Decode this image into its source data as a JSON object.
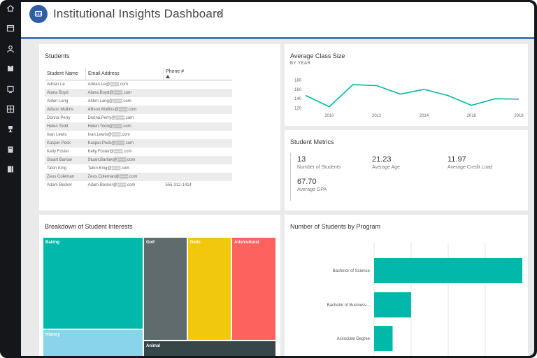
{
  "app": {
    "title": "Institutional Insights Dashboard",
    "badge_icon": "chart-icon",
    "dropdown_icon": "chevron-down-icon"
  },
  "sidebar": {
    "icons": [
      "home-icon",
      "calendar-icon",
      "person-icon",
      "puzzle-icon",
      "device-icon",
      "grid-icon",
      "trophy-icon",
      "book-icon",
      "bookmark-icon"
    ]
  },
  "colors": {
    "accent": "#4a78b5",
    "teal": "#01b8aa",
    "dark_gray": "#5f6b6d",
    "yellow": "#f2c80f",
    "coral": "#fd625e",
    "light_blue": "#8ad4eb",
    "charcoal": "#374649"
  },
  "students": {
    "title": "Students",
    "columns": [
      "Student Name",
      "Email Address",
      "Phone #"
    ],
    "rows": [
      {
        "name": "Adrian Le",
        "email": "Adrian.Le@▒▒▒.com",
        "phone": ""
      },
      {
        "name": "Alana Boyd",
        "email": "Alana.Boyd@▒▒▒.com",
        "phone": ""
      },
      {
        "name": "Alden Lang",
        "email": "Alden.Lang@▒▒▒.com",
        "phone": ""
      },
      {
        "name": "Allison Mullins",
        "email": "Allison.Mullins@▒▒▒.com",
        "phone": ""
      },
      {
        "name": "Donna Perry",
        "email": "Donna.Perry@▒▒▒.com",
        "phone": ""
      },
      {
        "name": "Helen Todd",
        "email": "Helen.Todd@▒▒▒.com",
        "phone": ""
      },
      {
        "name": "Ivan Lewis",
        "email": "Ivan.Lewis@▒▒▒.com",
        "phone": ""
      },
      {
        "name": "Kasper Peck",
        "email": "Kasper.Peck@▒▒▒.com",
        "phone": ""
      },
      {
        "name": "Kelly Foster",
        "email": "Kelly.Foster@▒▒▒.com",
        "phone": ""
      },
      {
        "name": "Stuart Barlow",
        "email": "Stuart.Barlow@▒▒▒.com",
        "phone": ""
      },
      {
        "name": "Talon King",
        "email": "Talon.King@▒▒▒.com",
        "phone": ""
      },
      {
        "name": "Zeus Coleman",
        "email": "Zeus.Coleman@▒▒▒.com",
        "phone": ""
      },
      {
        "name": "Adam Becker",
        "email": "Adam.Becker@▒▒▒.com",
        "phone": "555-312-1414"
      }
    ]
  },
  "metrics": {
    "title": "Student Metrics",
    "items": [
      {
        "value": "13",
        "label": "Number of Students"
      },
      {
        "value": "21.23",
        "label": "Average Age"
      },
      {
        "value": "11.97",
        "label": "Average Credit Load"
      },
      {
        "value": "67.70",
        "label": "Average GPA"
      }
    ]
  },
  "interests": {
    "title": "Breakdown of Student Interests",
    "tiles": [
      {
        "label": "Baking",
        "color": "#01b8aa"
      },
      {
        "label": "History",
        "color": "#8ad4eb"
      },
      {
        "label": "Golf",
        "color": "#5f6b6d"
      },
      {
        "label": "Dolls",
        "color": "#f2c80f"
      },
      {
        "label": "Arts/cultural",
        "color": "#fd625e"
      },
      {
        "label": "Animal",
        "color": "#374649"
      }
    ]
  },
  "chart_data": [
    {
      "type": "line",
      "title": "Average Class Size",
      "subtitle": "BY YEAR",
      "x": [
        2009,
        2010,
        2011,
        2012,
        2013,
        2014,
        2015,
        2016,
        2017,
        2018
      ],
      "series": [
        {
          "values": [
            147,
            123,
            170,
            168,
            150,
            160,
            147,
            126,
            140,
            139
          ]
        }
      ],
      "xticks": [
        2010,
        2012,
        2014,
        2016,
        2018
      ],
      "yticks": [
        120,
        140,
        160,
        180
      ],
      "xlim": [
        2009,
        2018
      ],
      "ylim": [
        115,
        185
      ],
      "color": "#01b8aa"
    },
    {
      "type": "bar",
      "orientation": "horizontal",
      "title": "Number of Students by Program",
      "categories": [
        "Bachelor of Science",
        "Bachelor of Business...",
        "Associate Degree"
      ],
      "values": [
        8,
        2,
        1
      ],
      "xlim": [
        0,
        8
      ],
      "color": "#01b8aa"
    }
  ]
}
